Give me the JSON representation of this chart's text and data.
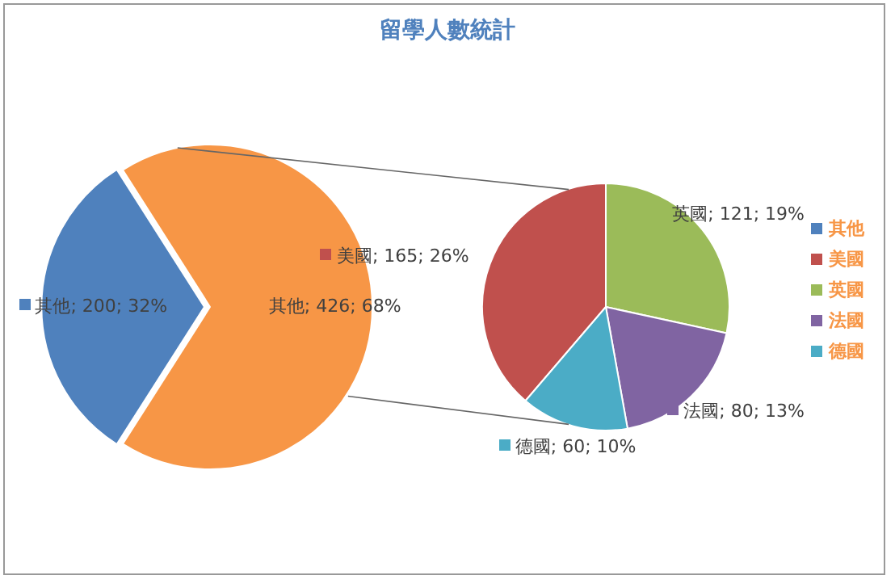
{
  "chart_data": [
    {
      "type": "pie",
      "title": "留學人數統計",
      "categories": [
        "其他",
        null
      ],
      "values": [
        200,
        426
      ],
      "colors": [
        "#4f81bd",
        "#f79646"
      ],
      "value_labels": [
        "其他; 200; 32%",
        "其他; 426; 68%"
      ],
      "legend": "right"
    },
    {
      "type": "pie",
      "categories": [
        "美國",
        "英國",
        "法國",
        "德國"
      ],
      "values": [
        165,
        121,
        80,
        60
      ],
      "colors": [
        "#c0504d",
        "#9bbb59",
        "#8064a2",
        "#4bacc6"
      ],
      "value_labels": [
        "美國; 165; 26%",
        "英國; 121; 19%",
        "法國; 80; 13%",
        "德國; 60; 10%"
      ],
      "legend": "right"
    }
  ]
}
